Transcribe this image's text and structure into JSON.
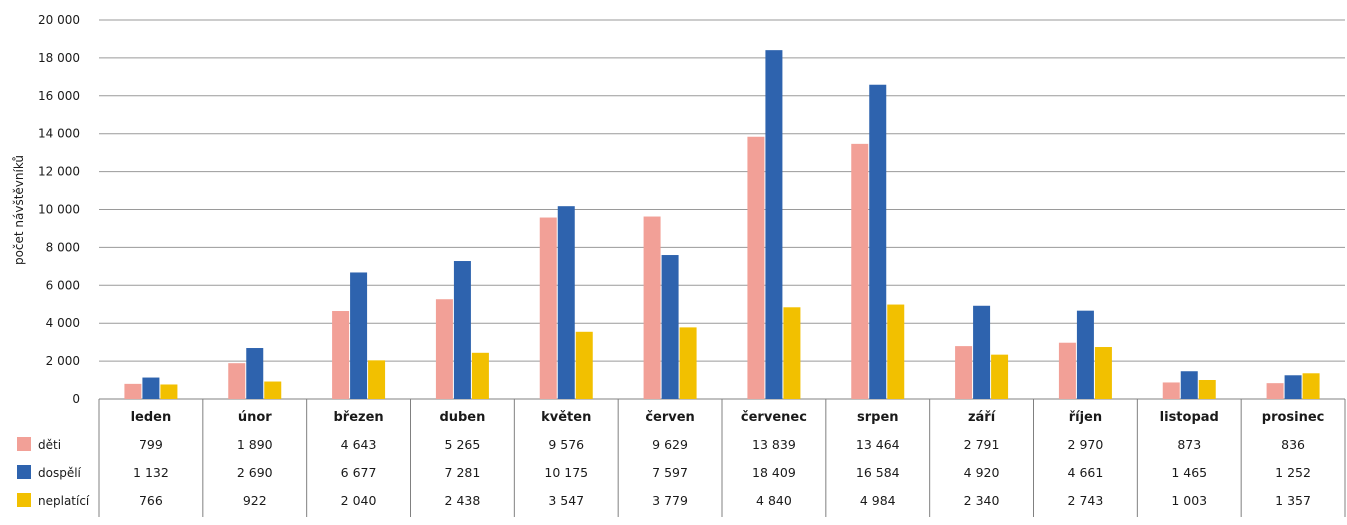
{
  "chart_data": {
    "type": "bar",
    "ylabel": "počet návštěvníků",
    "ylim": [
      0,
      20000
    ],
    "yticks": [
      0,
      2000,
      4000,
      6000,
      8000,
      10000,
      12000,
      14000,
      16000,
      18000,
      20000
    ],
    "ytick_labels": [
      "0",
      "2 000",
      "4 000",
      "6 000",
      "8 000",
      "10 000",
      "12 000",
      "14 000",
      "16 000",
      "18 000",
      "20 000"
    ],
    "grid": true,
    "legend_placement": "data-table-left",
    "categories": [
      "leden",
      "únor",
      "březen",
      "duben",
      "květen",
      "červen",
      "červenec",
      "srpen",
      "září",
      "říjen",
      "listopad",
      "prosinec"
    ],
    "series": [
      {
        "name": "děti",
        "color": "#F2A097",
        "values": [
          799,
          1890,
          4643,
          5265,
          9576,
          9629,
          13839,
          13464,
          2791,
          2970,
          873,
          836
        ],
        "labels": [
          "799",
          "1 890",
          "4 643",
          "5 265",
          "9 576",
          "9 629",
          "13 839",
          "13 464",
          "2 791",
          "2 970",
          "873",
          "836"
        ]
      },
      {
        "name": "dospělí",
        "color": "#2E63AE",
        "values": [
          1132,
          2690,
          6677,
          7281,
          10175,
          7597,
          18409,
          16584,
          4920,
          4661,
          1465,
          1252
        ],
        "labels": [
          "1 132",
          "2 690",
          "6 677",
          "7 281",
          "10 175",
          "7 597",
          "18 409",
          "16 584",
          "4 920",
          "4 661",
          "1 465",
          "1 252"
        ]
      },
      {
        "name": "neplatící",
        "color": "#F2C000",
        "values": [
          766,
          922,
          2040,
          2438,
          3547,
          3779,
          4840,
          4984,
          2340,
          2743,
          1003,
          1357
        ],
        "labels": [
          "766",
          "922",
          "2 040",
          "2 438",
          "3 547",
          "3 779",
          "4 840",
          "4 984",
          "2 340",
          "2 743",
          "1 003",
          "1 357"
        ]
      }
    ]
  }
}
